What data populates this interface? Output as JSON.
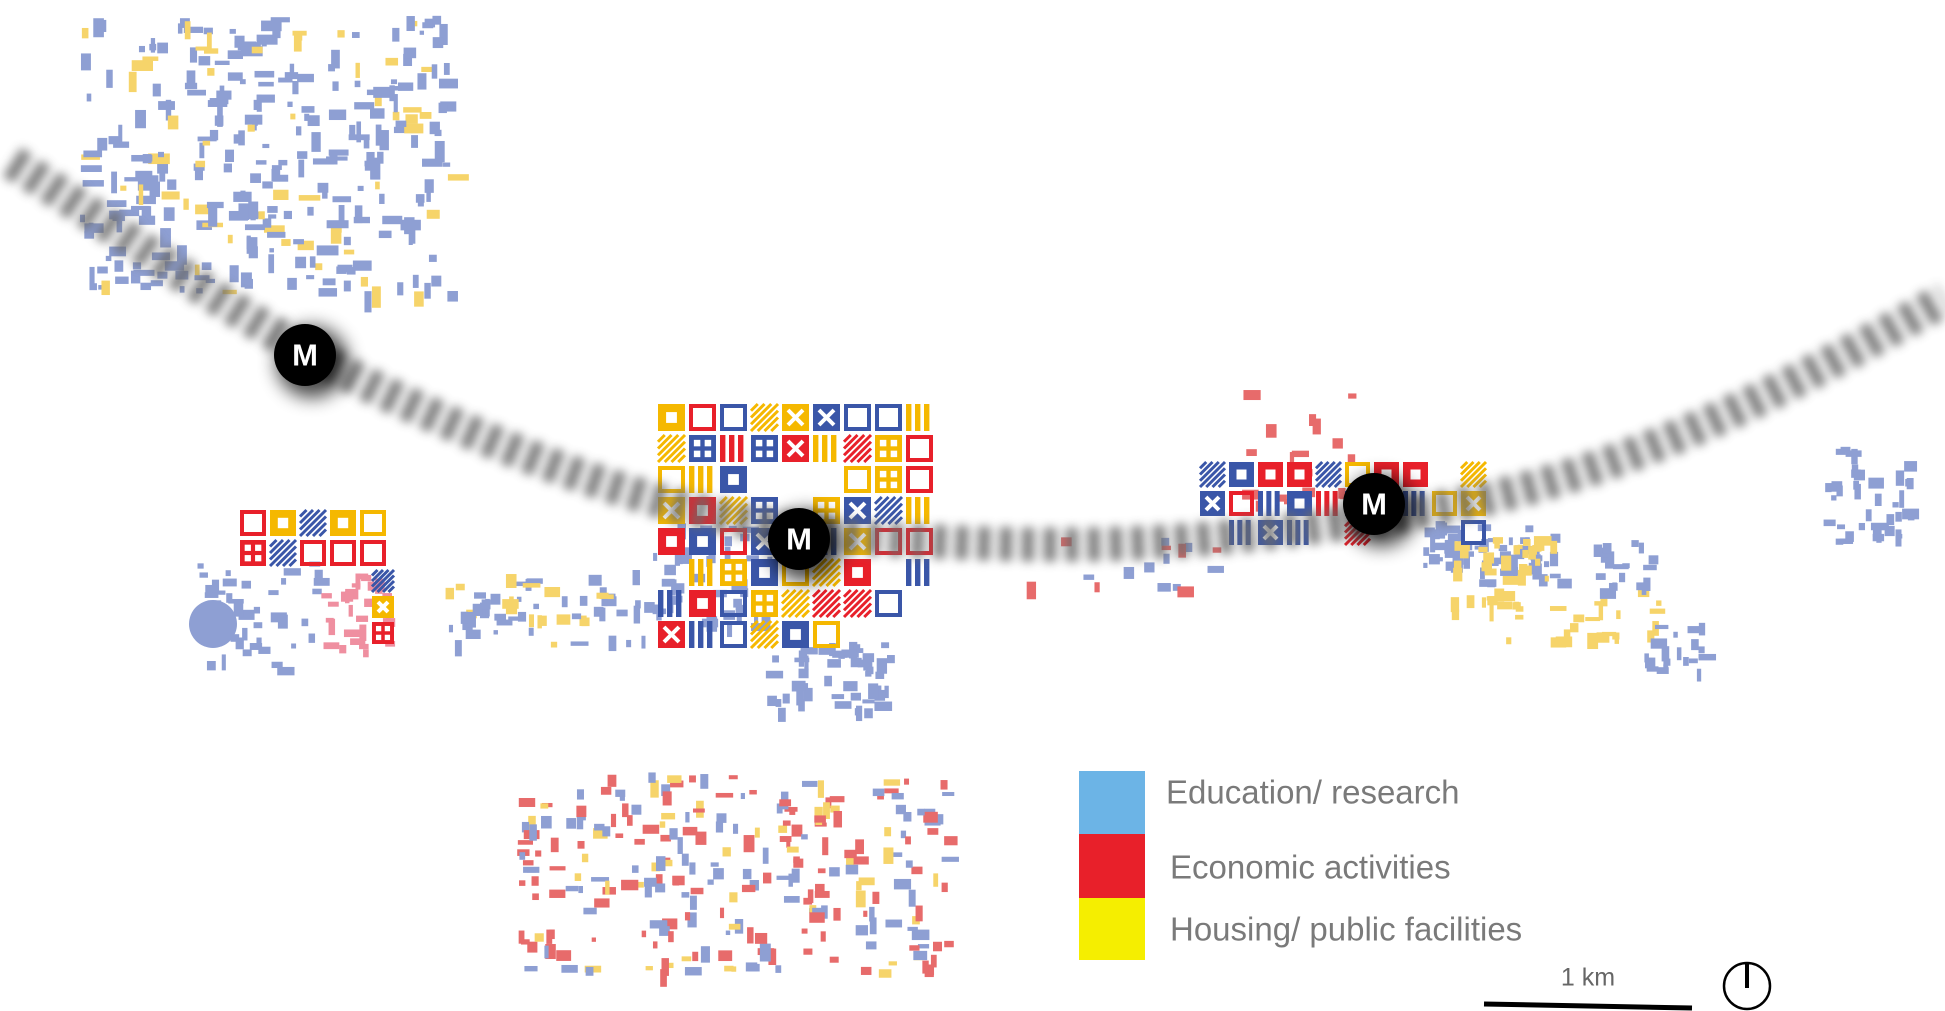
{
  "map": {
    "stations": [
      {
        "label": "M"
      },
      {
        "label": "M"
      },
      {
        "label": "M"
      }
    ],
    "legend": [
      {
        "label": "Education/ research",
        "color": "#6cb4e6"
      },
      {
        "label": "Economic activities",
        "color": "#e8202a"
      },
      {
        "label": "Housing/ public facilities",
        "color": "#f5ee00"
      }
    ],
    "scale_bar": {
      "label": "1 km"
    }
  }
}
